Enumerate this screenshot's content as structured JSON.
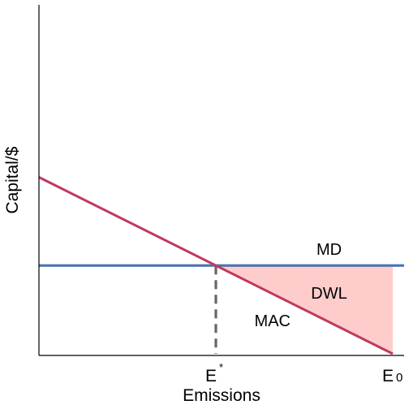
{
  "chart_data": {
    "type": "line",
    "xlabel": "Emissions",
    "ylabel": "Capital/$",
    "xlim": [
      0,
      10
    ],
    "ylim": [
      0,
      10
    ],
    "x_ticks": [
      {
        "x": 5,
        "label": "E",
        "sup": "*"
      },
      {
        "x": 10,
        "label": "E",
        "sub": "0"
      }
    ],
    "series": [
      {
        "name": "MAC",
        "x": [
          0,
          10
        ],
        "y": [
          6.4,
          0
        ],
        "color": "#bf3a5e"
      },
      {
        "name": "MD",
        "x": [
          0,
          10
        ],
        "y": [
          3.2,
          3.2
        ],
        "color": "#4c72b0"
      }
    ],
    "annotations": [
      {
        "text": "MD",
        "x": 8.2,
        "y": 3.8
      },
      {
        "text": "DWL",
        "x": 8.2,
        "y": 2.2
      },
      {
        "text": "MAC",
        "x": 6.6,
        "y": 1.2
      }
    ],
    "shaded_region": {
      "label": "DWL",
      "polygon": [
        [
          5,
          3.2
        ],
        [
          10,
          3.2
        ],
        [
          10,
          0
        ]
      ],
      "color": "#ffcccc"
    },
    "reference_line": {
      "x": 5,
      "y_from": 0,
      "y_to": 3.2,
      "style": "dashed",
      "color": "#666666"
    }
  }
}
